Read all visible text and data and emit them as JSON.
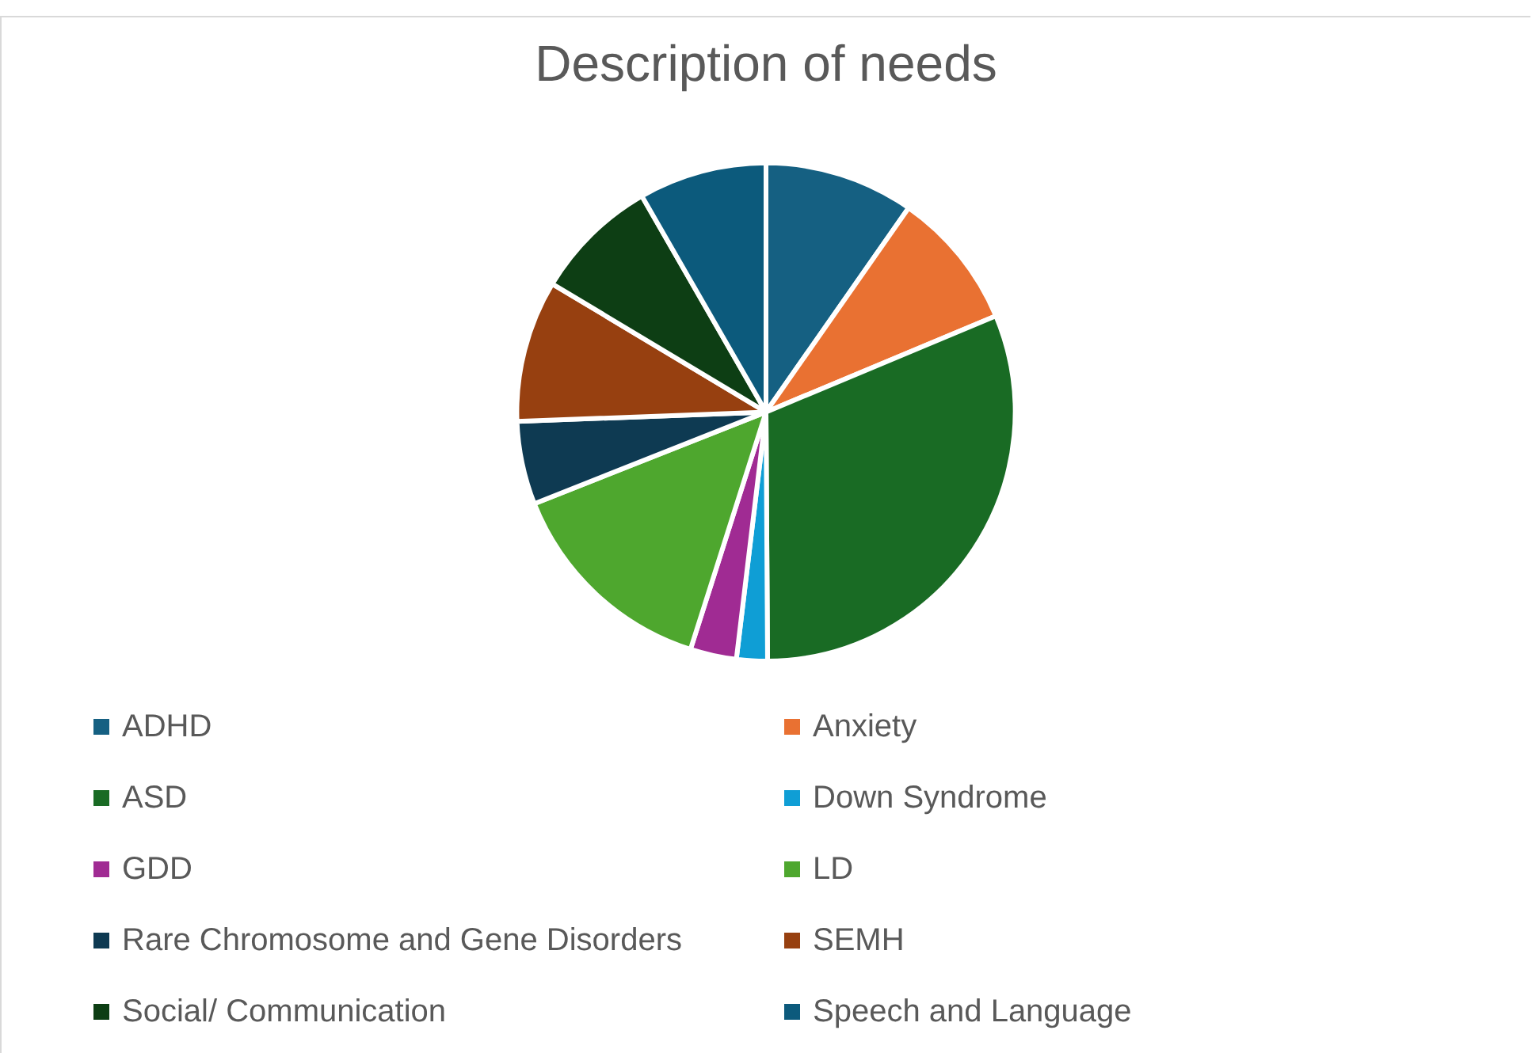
{
  "chart_data": {
    "type": "pie",
    "title": "Description of needs",
    "categories": [
      "ADHD",
      "Anxiety",
      "ASD",
      "Down Syndrome",
      "GDD",
      "LD",
      "Rare Chromosome and Gene Disorders",
      "SEMH",
      "Social/ Communication",
      "Speech and Language"
    ],
    "values": [
      9.7,
      9,
      31.2,
      2,
      3,
      14.1,
      5.4,
      9.2,
      8.1,
      8.3
    ],
    "colors": [
      "#156082",
      "#e97132",
      "#196b24",
      "#0f9ed5",
      "#a02b93",
      "#4ea72e",
      "#0e3a52",
      "#974010",
      "#0d3e14",
      "#0c5a7c"
    ],
    "legend": "bottom"
  }
}
